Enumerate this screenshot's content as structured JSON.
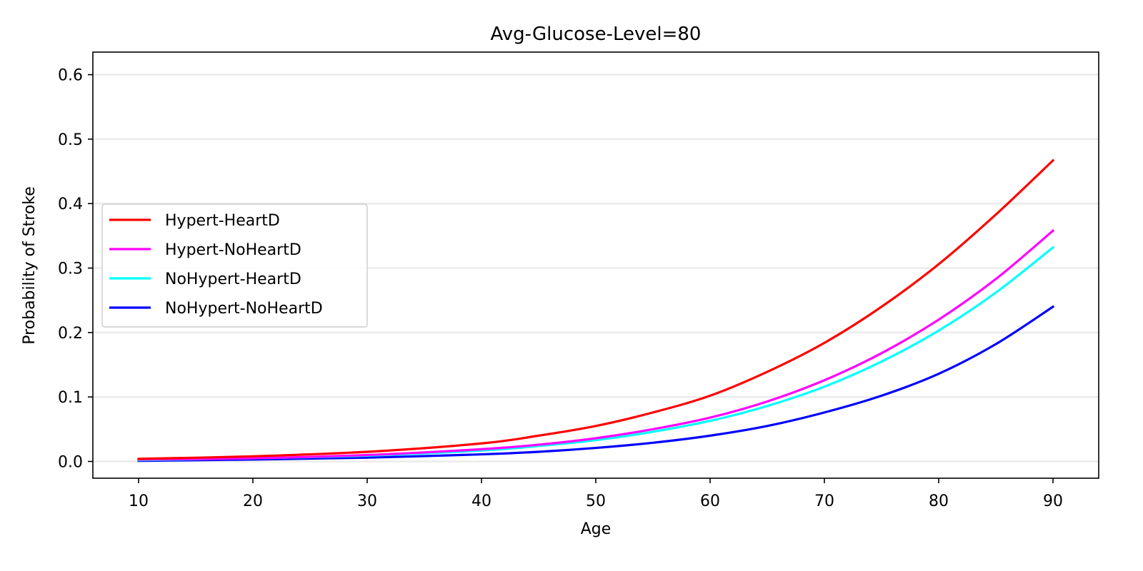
{
  "chart_data": {
    "type": "line",
    "title": "Avg-Glucose-Level=80",
    "xlabel": "Age",
    "ylabel": "Probability of Stroke",
    "xlim": [
      6,
      94
    ],
    "ylim": [
      -0.026,
      0.635
    ],
    "xticks": [
      10,
      20,
      30,
      40,
      50,
      60,
      70,
      80,
      90
    ],
    "yticks": [
      0.0,
      0.1,
      0.2,
      0.3,
      0.4,
      0.5,
      0.6
    ],
    "ytick_labels": [
      "0.0",
      "0.1",
      "0.2",
      "0.3",
      "0.4",
      "0.5",
      "0.6"
    ],
    "grid": "horizontal",
    "legend_position": "center-left",
    "x": [
      10,
      20,
      30,
      40,
      45,
      50,
      55,
      60,
      65,
      70,
      75,
      80,
      85,
      90
    ],
    "series": [
      {
        "name": "Hypert-HeartD",
        "color": "#ff0000",
        "values": [
          0.004,
          0.008,
          0.015,
          0.028,
          0.04,
          0.055,
          0.076,
          0.102,
          0.139,
          0.184,
          0.24,
          0.306,
          0.383,
          0.467
        ]
      },
      {
        "name": "Hypert-NoHeartD",
        "color": "#ff00ff",
        "values": [
          0.003,
          0.005,
          0.01,
          0.019,
          0.026,
          0.036,
          0.05,
          0.068,
          0.093,
          0.126,
          0.168,
          0.22,
          0.283,
          0.358
        ]
      },
      {
        "name": "NoHypert-HeartD",
        "color": "#00ffff",
        "values": [
          0.002,
          0.005,
          0.009,
          0.017,
          0.024,
          0.033,
          0.046,
          0.063,
          0.086,
          0.116,
          0.155,
          0.203,
          0.262,
          0.332
        ]
      },
      {
        "name": "NoHypert-NoHeartD",
        "color": "#0000ff",
        "values": [
          0.001,
          0.003,
          0.006,
          0.011,
          0.015,
          0.021,
          0.029,
          0.04,
          0.055,
          0.076,
          0.102,
          0.136,
          0.182,
          0.24
        ]
      }
    ]
  }
}
